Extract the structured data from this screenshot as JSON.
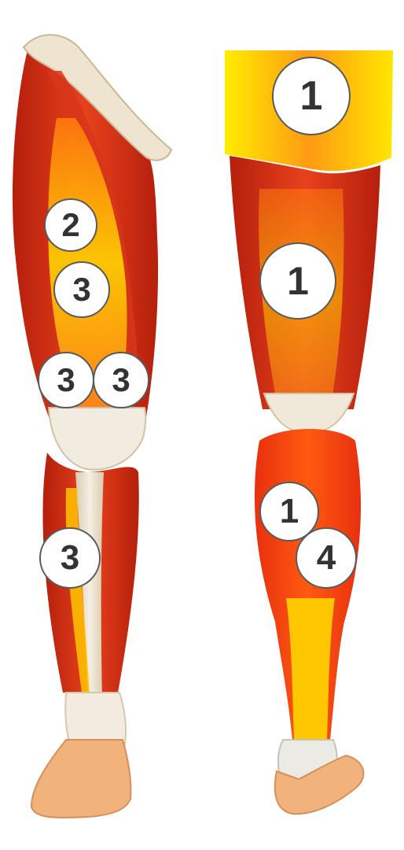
{
  "figure": {
    "description_free": true,
    "colors": {
      "muscle_dark": "#c62810",
      "muscle_mid": "#e8411c",
      "muscle_orange": "#f58a1c",
      "highlight_yellow": "#ffe000",
      "tendon": "#eee3cf",
      "skin": "#f2b27c",
      "outline": "#5a5a5a"
    },
    "views": [
      "anterior-leg",
      "posterior-leg"
    ]
  },
  "labels": {
    "anterior": [
      {
        "id": "a-hip-flexor",
        "number": "2"
      },
      {
        "id": "a-quad-upper",
        "number": "3"
      },
      {
        "id": "a-quad-left",
        "number": "3"
      },
      {
        "id": "a-quad-right",
        "number": "3"
      },
      {
        "id": "a-shin",
        "number": "3"
      }
    ],
    "posterior": [
      {
        "id": "p-glute",
        "number": "1"
      },
      {
        "id": "p-hamstring",
        "number": "1"
      },
      {
        "id": "p-calf-upper",
        "number": "1"
      },
      {
        "id": "p-calf-lower",
        "number": "4"
      }
    ]
  }
}
